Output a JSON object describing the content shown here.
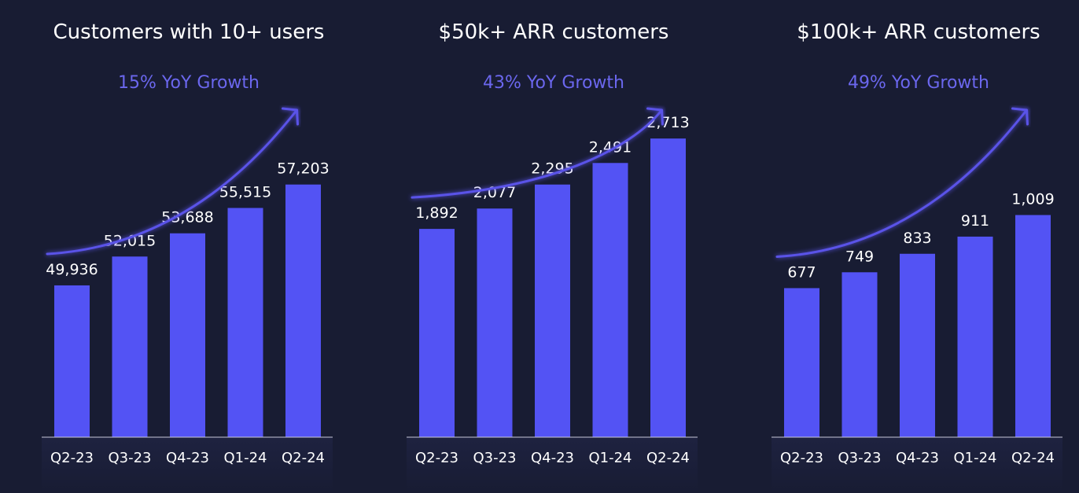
{
  "colors": {
    "background": "#181c33",
    "bar": "#5353f4",
    "growth_text": "#6b67ee",
    "arrow": "#5a52e8",
    "text": "#ffffff"
  },
  "chart_data": [
    {
      "type": "bar",
      "title": "Customers with 10+ users",
      "annotation": "15% YoY Growth",
      "categories": [
        "Q2-23",
        "Q3-23",
        "Q4-23",
        "Q1-24",
        "Q2-24"
      ],
      "values": [
        49936,
        52015,
        53688,
        55515,
        57203
      ],
      "value_labels": [
        "49,936",
        "52,015",
        "53,688",
        "55,515",
        "57,203"
      ],
      "xlabel": "",
      "ylabel": "",
      "ylim": [
        39000,
        62000
      ],
      "grid": false,
      "legend": "none"
    },
    {
      "type": "bar",
      "title": "$50k+ ARR customers",
      "annotation": "43% YoY Growth",
      "categories": [
        "Q2-23",
        "Q3-23",
        "Q4-23",
        "Q1-24",
        "Q2-24"
      ],
      "values": [
        1892,
        2077,
        2295,
        2491,
        2713
      ],
      "value_labels": [
        "1,892",
        "2,077",
        "2,295",
        "2,491",
        "2,713"
      ],
      "xlabel": "",
      "ylabel": "",
      "ylim": [
        0,
        2900
      ],
      "grid": false,
      "legend": "none"
    },
    {
      "type": "bar",
      "title": "$100k+ ARR customers",
      "annotation": "49% YoY Growth",
      "categories": [
        "Q2-23",
        "Q3-23",
        "Q4-23",
        "Q1-24",
        "Q2-24"
      ],
      "values": [
        677,
        749,
        833,
        911,
        1009
      ],
      "value_labels": [
        "677",
        "749",
        "833",
        "911",
        "1,009"
      ],
      "xlabel": "",
      "ylabel": "",
      "ylim": [
        0,
        1450
      ],
      "grid": false,
      "legend": "none"
    }
  ]
}
